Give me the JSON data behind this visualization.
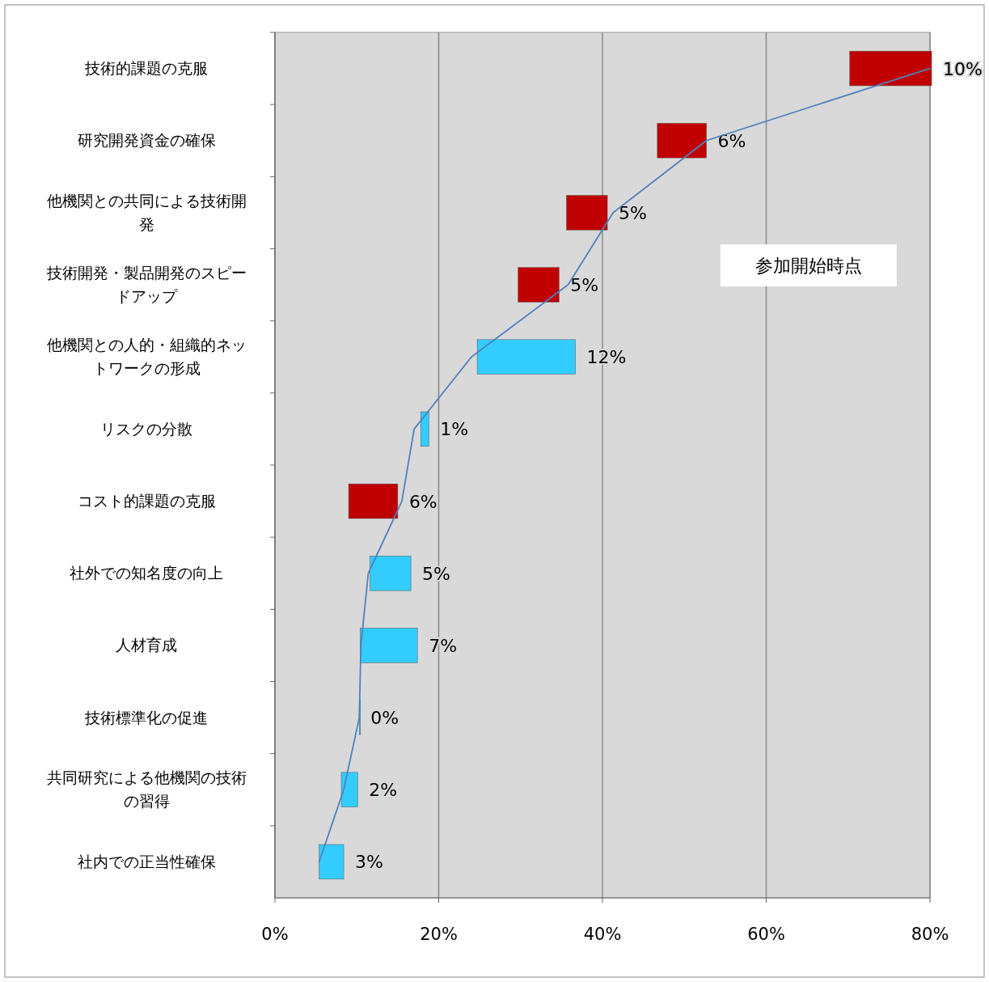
{
  "chart_data": {
    "type": "bar",
    "orientation": "horizontal",
    "categories": [
      "技術的課題の克服",
      "研究開発資金の確保",
      "他機関との共同による技術開発",
      "技術開発・製品開発のスピードアップ",
      "他機関との人的・組織的ネットワークの形成",
      "リスクの分散",
      "コスト的課題の克服",
      "社外での知名度の向上",
      "人材育成",
      "技術標準化の促進",
      "共同研究による他機関の技術の習得",
      "社内での正当性確保"
    ],
    "series": [
      {
        "type": "bar",
        "values": [
          10,
          6,
          5,
          5,
          12,
          1,
          6,
          5,
          7,
          0,
          2,
          3
        ],
        "base": [
          70.2,
          46.7,
          35.6,
          29.7,
          24.7,
          17.8,
          9.0,
          11.6,
          10.4,
          10.3,
          8.1,
          5.4
        ],
        "colors": [
          "#c00000",
          "#c00000",
          "#c00000",
          "#c00000",
          "#33ccff",
          "#33ccff",
          "#c00000",
          "#33ccff",
          "#33ccff",
          "#33ccff",
          "#33ccff",
          "#33ccff"
        ],
        "value_labels": [
          "10%",
          "6%",
          "5%",
          "5%",
          "12%",
          "1%",
          "6%",
          "5%",
          "7%",
          "0%",
          "2%",
          "3%"
        ]
      },
      {
        "type": "line",
        "color": "#4f81bd",
        "values": [
          80,
          52.7,
          41.3,
          35.8,
          24,
          17,
          15.5,
          11.4,
          10.5,
          10.3,
          8.4,
          5.4
        ]
      }
    ],
    "annotations": [
      "参加開始時点"
    ],
    "xlim": [
      0,
      80
    ],
    "xticks": [
      {
        "value": 0,
        "label": "0%"
      },
      {
        "value": 20,
        "label": "20%"
      },
      {
        "value": 40,
        "label": "40%"
      },
      {
        "value": 60,
        "label": "60%"
      },
      {
        "value": 80,
        "label": "80%"
      }
    ],
    "grid": "x"
  }
}
